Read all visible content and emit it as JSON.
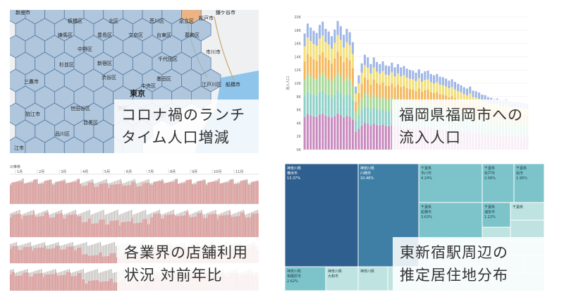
{
  "cards": [
    {
      "id": "lunch",
      "title_lines": [
        "コロナ禍のランチ",
        "タイム人口増減"
      ],
      "map_labels": [
        "新座市",
        "板橋区",
        "北区",
        "荒川区",
        "足立区",
        "松戸市",
        "鎌ケ谷市",
        "練馬区",
        "豊島区",
        "文京区",
        "台東区",
        "葛飾区",
        "市川市",
        "中野区",
        "杉並区",
        "新宿区",
        "千代田区",
        "墨田区",
        "江戸川区",
        "船橋市",
        "三鷹市",
        "渋谷区",
        "中央区",
        "東京",
        "世田谷区",
        "港区",
        "目黒区",
        "江東区",
        "狛江市",
        "品川区",
        "江市"
      ],
      "colors": {
        "hex_fill": "#9ab8d6",
        "hex_stroke": "#5c7fa6",
        "highlight": "#e8a060",
        "water": "#8fc5ea",
        "land": "#eef0f2"
      }
    },
    {
      "id": "fukuoka",
      "title_lines": [
        "福岡県福岡市への",
        "流入人口"
      ],
      "chart_data": {
        "type": "bar",
        "ylabel": "流入人口",
        "y_ticks": [
          "0K",
          "2K",
          "4K",
          "6K",
          "8K",
          "10K",
          "12K",
          "14K",
          "16K",
          "18K",
          "20K"
        ],
        "ylim": [
          0,
          20000
        ],
        "stack_colors": [
          "#c98bbf",
          "#8fd0c8",
          "#a8d99a",
          "#f4b85c",
          "#f2e07a",
          "#9fb6e6"
        ],
        "stack_shares": [
          0.28,
          0.18,
          0.14,
          0.16,
          0.13,
          0.11
        ],
        "totals": [
          17500,
          19000,
          18400,
          17900,
          17600,
          18800,
          19300,
          18200,
          17800,
          17100,
          18100,
          19400,
          18600,
          17300,
          18200,
          17700,
          16200,
          9500,
          11200,
          13000,
          14300,
          13900,
          12900,
          13900,
          13200,
          12900,
          13300,
          12700,
          12600,
          13100,
          12400,
          12900,
          12400,
          12600,
          12200,
          12000,
          11900,
          11600,
          12100,
          11500,
          11800,
          11900,
          11400,
          11200,
          11400,
          11000,
          10900,
          10700,
          10400,
          10600,
          10200,
          9900,
          9700,
          9400,
          9200,
          9500,
          8900,
          8800,
          8600,
          8300,
          8200,
          7900,
          7800,
          7600,
          7700,
          7500,
          7400,
          7600,
          7300,
          7200,
          7100,
          7200,
          7100,
          7000,
          6900
        ]
      }
    },
    {
      "id": "industry",
      "title_lines": [
        "各業界の店舗利用",
        "状況 対前年比"
      ],
      "header_label": "の推移",
      "months": [
        "1月",
        "2月",
        "3月",
        "4月",
        "5月",
        "6月",
        "7月",
        "8月",
        "9月",
        "10月",
        "11月"
      ],
      "colors": {
        "current": "#e89090",
        "previous": "#b8b4b0"
      }
    },
    {
      "id": "residence",
      "title_lines": [
        "東新宿駅周辺の",
        "推定居住地分布"
      ],
      "tiles": [
        {
          "pref": "神奈川県",
          "city": "横浜市",
          "share": "13.37%"
        },
        {
          "pref": "神奈川県",
          "city": "川崎市",
          "share": "10.46%"
        },
        {
          "pref": "千葉県",
          "city": "市川市",
          "share": "4.24%"
        },
        {
          "pref": "千葉県",
          "city": "松戸市",
          "share": "2.06%"
        },
        {
          "pref": "千葉県",
          "city": "柏市",
          "share": "1.95%"
        },
        {
          "pref": "千葉県",
          "city": "船橋市",
          "share": "3.63%"
        },
        {
          "pref": "千葉県",
          "city": "浦安市",
          "share": "1.22%"
        },
        {
          "pref": "千葉県",
          "city": "",
          "share": ""
        },
        {
          "pref": "神奈川県",
          "city": "相模原市",
          "share": "2.62%"
        },
        {
          "pref": "神奈川県",
          "city": "大和市",
          "share": ""
        },
        {
          "pref": "神奈川県",
          "city": "",
          "share": ""
        }
      ],
      "colors": {
        "dark": "#2e5f8e",
        "mid": "#3f7fa6",
        "teal": "#7cc4ca",
        "light": "#bfe3e0",
        "pale": "#d9efec"
      }
    }
  ]
}
